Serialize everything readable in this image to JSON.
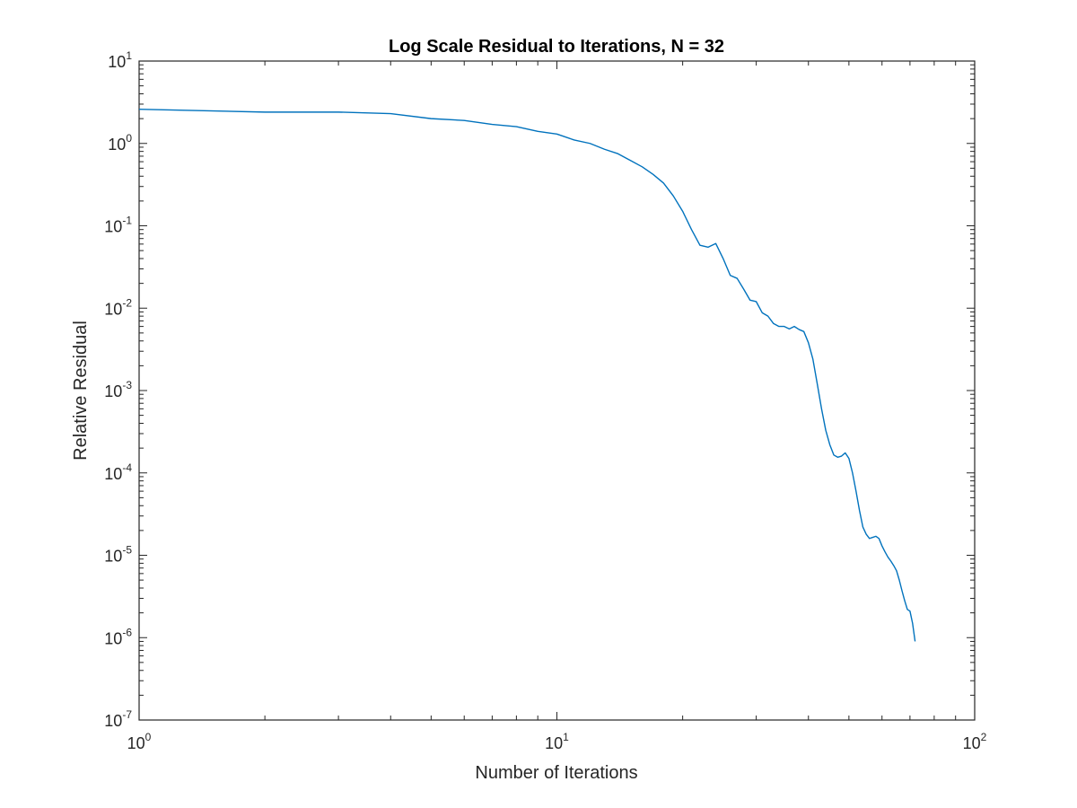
{
  "chart_data": {
    "type": "line",
    "title": "Log Scale Residual to Iterations, N = 32",
    "xlabel": "Number of Iterations",
    "ylabel": "Relative Residual",
    "xscale": "log",
    "yscale": "log",
    "xlim": [
      1,
      100
    ],
    "ylim": [
      1e-07,
      10
    ],
    "grid": false,
    "line_color": "#0072BD",
    "axis_color": "#262626",
    "x_tick_labels": [
      {
        "base": "10",
        "exp": "0"
      },
      {
        "base": "10",
        "exp": "1"
      },
      {
        "base": "10",
        "exp": "2"
      }
    ],
    "y_tick_labels": [
      {
        "base": "10",
        "exp": "-7"
      },
      {
        "base": "10",
        "exp": "-6"
      },
      {
        "base": "10",
        "exp": "-5"
      },
      {
        "base": "10",
        "exp": "-4"
      },
      {
        "base": "10",
        "exp": "-3"
      },
      {
        "base": "10",
        "exp": "-2"
      },
      {
        "base": "10",
        "exp": "-1"
      },
      {
        "base": "10",
        "exp": "0"
      },
      {
        "base": "10",
        "exp": "1"
      }
    ],
    "series": [
      {
        "x": [
          1,
          2,
          3,
          4,
          5,
          6,
          7,
          8,
          9,
          10,
          11,
          12,
          13,
          14,
          15,
          16,
          17,
          18,
          19,
          20,
          21,
          22,
          23,
          24,
          25,
          26,
          27,
          28,
          29,
          30,
          31,
          32,
          33,
          34,
          35,
          36,
          37,
          38,
          39,
          40,
          41,
          42,
          43,
          44,
          45,
          46,
          47,
          48,
          49,
          50,
          51,
          52,
          53,
          54,
          55,
          56,
          57,
          58,
          59,
          60,
          61,
          62,
          63,
          64,
          65,
          66,
          67,
          68,
          69,
          70,
          71,
          72
        ],
        "y": [
          2.6,
          2.4,
          2.4,
          2.3,
          2.0,
          1.9,
          1.7,
          1.6,
          1.4,
          1.3,
          1.1,
          1.0,
          0.85,
          0.75,
          0.62,
          0.52,
          0.42,
          0.33,
          0.23,
          0.15,
          0.09,
          0.058,
          0.055,
          0.061,
          0.04,
          0.025,
          0.023,
          0.017,
          0.0125,
          0.012,
          0.0088,
          0.008,
          0.0065,
          0.006,
          0.006,
          0.0056,
          0.006,
          0.0055,
          0.0052,
          0.0038,
          0.0024,
          0.0012,
          0.0006,
          0.00033,
          0.00022,
          0.000165,
          0.000155,
          0.00016,
          0.000175,
          0.00015,
          0.0001,
          6e-05,
          3.5e-05,
          2.2e-05,
          1.8e-05,
          1.6e-05,
          1.65e-05,
          1.7e-05,
          1.6e-05,
          1.3e-05,
          1.1e-05,
          9.5e-06,
          8.5e-06,
          7.5e-06,
          6.5e-06,
          5e-06,
          3.7e-06,
          2.8e-06,
          2.2e-06,
          2.1e-06,
          1.5e-06,
          9e-07
        ]
      }
    ]
  }
}
